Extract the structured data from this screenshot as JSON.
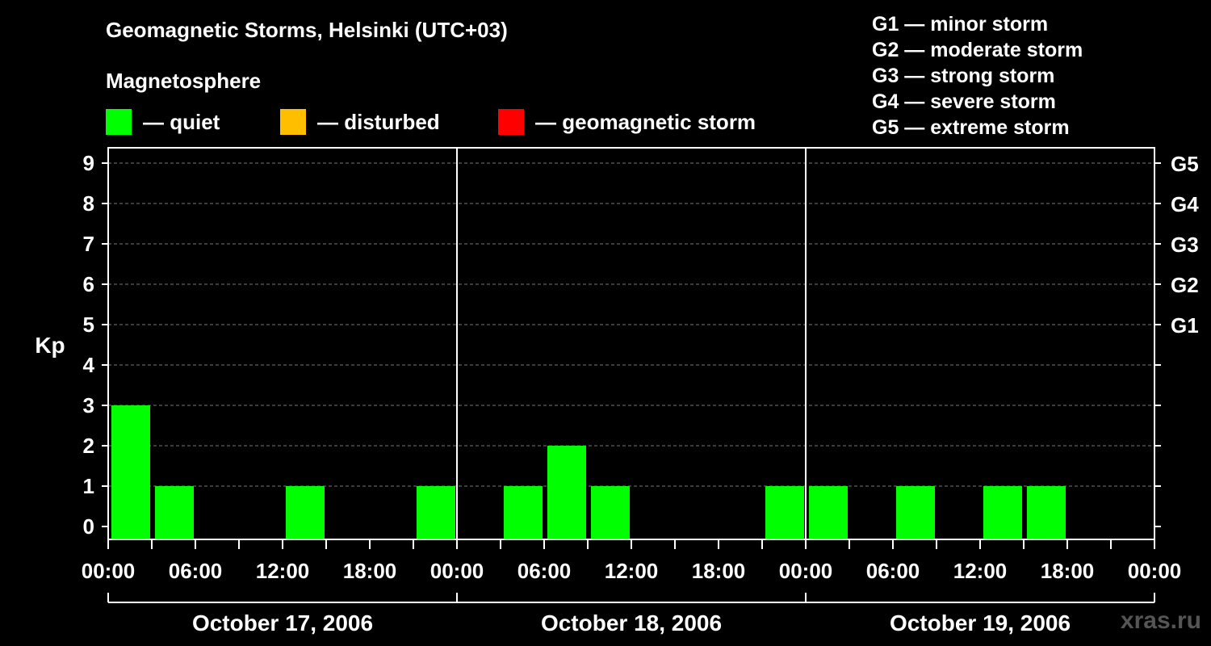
{
  "header": {
    "title": "Geomagnetic Storms, Helsinki (UTC+03)",
    "subtitle": "Magnetosphere"
  },
  "legend": [
    {
      "label": "— quiet",
      "color": "#00ff00"
    },
    {
      "label": "— disturbed",
      "color": "#ffbf00"
    },
    {
      "label": "— geomagnetic storm",
      "color": "#ff0000"
    }
  ],
  "scale_legend": [
    "G1 — minor storm",
    "G2 — moderate storm",
    "G3 — strong storm",
    "G4 — severe storm",
    "G5 — extreme storm"
  ],
  "watermark": "xras.ru",
  "chart_data": {
    "type": "bar",
    "title": "Geomagnetic Storms, Helsinki (UTC+03)",
    "ylabel": "Kp",
    "ylim": [
      0,
      9
    ],
    "yticks": [
      "0",
      "1",
      "2",
      "3",
      "4",
      "5",
      "6",
      "7",
      "8",
      "9"
    ],
    "right_ticks": [
      {
        "kp": 5,
        "label": "G1"
      },
      {
        "kp": 6,
        "label": "G2"
      },
      {
        "kp": 7,
        "label": "G3"
      },
      {
        "kp": 8,
        "label": "G4"
      },
      {
        "kp": 9,
        "label": "G5"
      }
    ],
    "xticks": [
      "00:00",
      "06:00",
      "12:00",
      "18:00",
      "00:00",
      "06:00",
      "12:00",
      "18:00",
      "00:00",
      "06:00",
      "12:00",
      "18:00",
      "00:00"
    ],
    "days": [
      "October 17, 2006",
      "October 18, 2006",
      "October 19, 2006"
    ],
    "interval_hours": 3,
    "values": [
      3,
      1,
      0,
      0,
      1,
      0,
      0,
      1,
      0,
      1,
      2,
      1,
      0,
      0,
      0,
      1,
      1,
      0,
      1,
      0,
      1,
      1,
      0,
      0
    ],
    "bar_status": [
      "quiet",
      "quiet",
      "quiet",
      "quiet",
      "quiet",
      "quiet",
      "quiet",
      "quiet",
      "quiet",
      "quiet",
      "quiet",
      "quiet",
      "quiet",
      "quiet",
      "quiet",
      "quiet",
      "quiet",
      "quiet",
      "quiet",
      "quiet",
      "quiet",
      "quiet",
      "quiet",
      "quiet"
    ],
    "colors": {
      "quiet": "#00ff00",
      "disturbed": "#ffbf00",
      "storm": "#ff0000"
    },
    "grid": true
  }
}
